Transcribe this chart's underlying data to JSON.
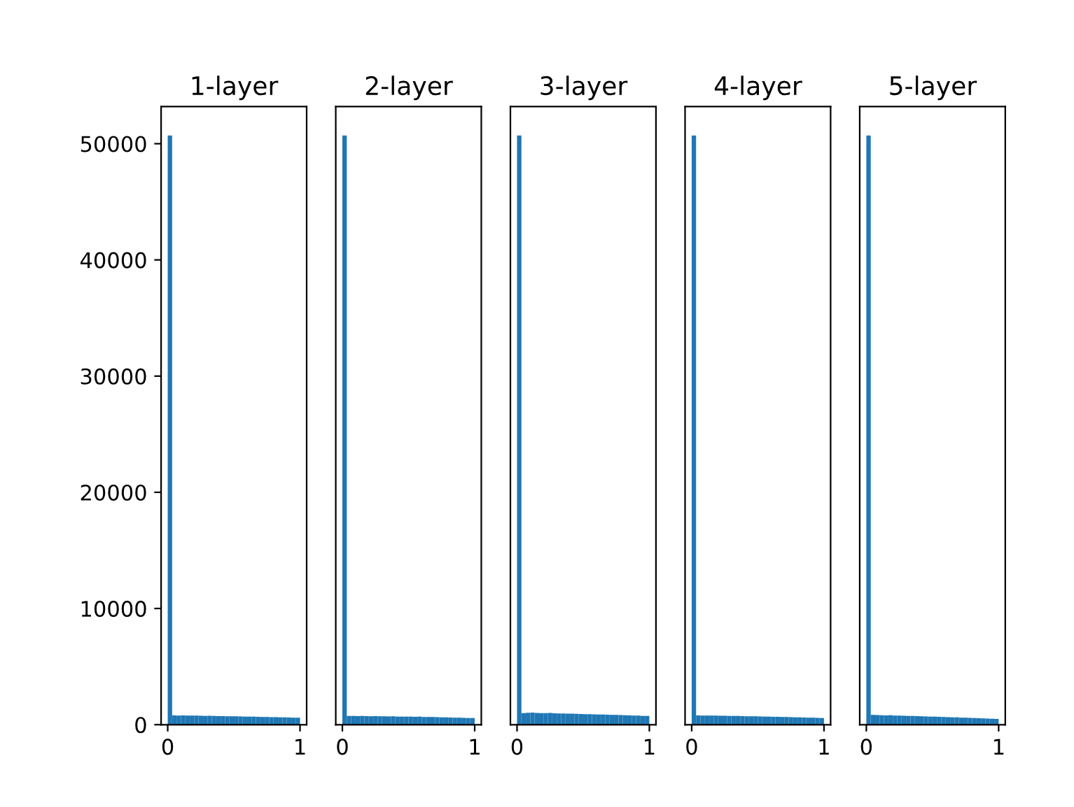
{
  "chart_data": [
    {
      "type": "histogram",
      "title": "1-layer",
      "color": "#1f77b4",
      "bins": [
        0,
        0.0333,
        0.0667,
        0.1,
        0.1333,
        0.1667,
        0.2,
        0.2333,
        0.2667,
        0.3,
        0.3333,
        0.3667,
        0.4,
        0.4333,
        0.4667,
        0.5,
        0.5333,
        0.5667,
        0.6,
        0.6333,
        0.6667,
        0.7,
        0.7333,
        0.7667,
        0.8,
        0.8333,
        0.8667,
        0.9,
        0.9333,
        0.9667,
        1
      ],
      "values": [
        50700,
        800,
        790,
        800,
        780,
        790,
        780,
        770,
        760,
        770,
        750,
        740,
        740,
        730,
        720,
        720,
        710,
        700,
        690,
        690,
        680,
        670,
        660,
        650,
        650,
        640,
        630,
        620,
        610,
        600
      ],
      "xlim": [
        -0.05,
        1.05
      ],
      "xticks": [
        0,
        1
      ],
      "ylim": [
        0,
        53200
      ],
      "yticks": [
        0,
        10000,
        20000,
        30000,
        40000,
        50000
      ],
      "grid": false
    },
    {
      "type": "histogram",
      "title": "2-layer",
      "color": "#1f77b4",
      "bins": [
        0,
        0.0333,
        0.0667,
        0.1,
        0.1333,
        0.1667,
        0.2,
        0.2333,
        0.2667,
        0.3,
        0.3333,
        0.3667,
        0.4,
        0.4333,
        0.4667,
        0.5,
        0.5333,
        0.5667,
        0.6,
        0.6333,
        0.6667,
        0.7,
        0.7333,
        0.7667,
        0.8,
        0.8333,
        0.8667,
        0.9,
        0.9333,
        0.9667,
        1
      ],
      "values": [
        50700,
        750,
        760,
        740,
        750,
        740,
        730,
        740,
        720,
        730,
        710,
        720,
        700,
        700,
        690,
        700,
        680,
        690,
        670,
        660,
        660,
        650,
        640,
        640,
        620,
        610,
        600,
        590,
        580,
        570
      ],
      "xlim": [
        -0.05,
        1.05
      ],
      "xticks": [
        0,
        1
      ],
      "ylim": [
        0,
        53200
      ],
      "yticks": [
        0,
        10000,
        20000,
        30000,
        40000,
        50000
      ],
      "tick_labels": "x",
      "grid": false
    },
    {
      "type": "histogram",
      "title": "3-layer",
      "color": "#1f77b4",
      "bins": [
        0,
        0.0333,
        0.0667,
        0.1,
        0.1333,
        0.1667,
        0.2,
        0.2333,
        0.2667,
        0.3,
        0.3333,
        0.3667,
        0.4,
        0.4333,
        0.4667,
        0.5,
        0.5333,
        0.5667,
        0.6,
        0.6333,
        0.6667,
        0.7,
        0.7333,
        0.7667,
        0.8,
        0.8333,
        0.8667,
        0.9,
        0.9333,
        0.9667,
        1
      ],
      "values": [
        50700,
        1000,
        1020,
        1040,
        1010,
        1000,
        990,
        1010,
        980,
        970,
        960,
        950,
        950,
        930,
        920,
        910,
        900,
        890,
        880,
        870,
        860,
        850,
        840,
        830,
        820,
        800,
        790,
        780,
        760,
        750
      ],
      "xlim": [
        -0.05,
        1.05
      ],
      "xticks": [
        0,
        1
      ],
      "ylim": [
        0,
        53200
      ],
      "yticks": [
        0,
        10000,
        20000,
        30000,
        40000,
        50000
      ],
      "tick_labels": "x",
      "grid": false
    },
    {
      "type": "histogram",
      "title": "4-layer",
      "color": "#1f77b4",
      "bins": [
        0,
        0.0333,
        0.0667,
        0.1,
        0.1333,
        0.1667,
        0.2,
        0.2333,
        0.2667,
        0.3,
        0.3333,
        0.3667,
        0.4,
        0.4333,
        0.4667,
        0.5,
        0.5333,
        0.5667,
        0.6,
        0.6333,
        0.6667,
        0.7,
        0.7333,
        0.7667,
        0.8,
        0.8333,
        0.8667,
        0.9,
        0.9333,
        0.9667,
        1
      ],
      "values": [
        50700,
        800,
        790,
        790,
        780,
        780,
        770,
        770,
        760,
        750,
        750,
        740,
        730,
        730,
        720,
        710,
        700,
        690,
        680,
        680,
        670,
        660,
        650,
        640,
        630,
        620,
        610,
        600,
        590,
        580
      ],
      "xlim": [
        -0.05,
        1.05
      ],
      "xticks": [
        0,
        1
      ],
      "ylim": [
        0,
        53200
      ],
      "yticks": [
        0,
        10000,
        20000,
        30000,
        40000,
        50000
      ],
      "tick_labels": "x",
      "grid": false
    },
    {
      "type": "histogram",
      "title": "5-layer",
      "color": "#1f77b4",
      "bins": [
        0,
        0.0333,
        0.0667,
        0.1,
        0.1333,
        0.1667,
        0.2,
        0.2333,
        0.2667,
        0.3,
        0.3333,
        0.3667,
        0.4,
        0.4333,
        0.4667,
        0.5,
        0.5333,
        0.5667,
        0.6,
        0.6333,
        0.6667,
        0.7,
        0.7333,
        0.7667,
        0.8,
        0.8333,
        0.8667,
        0.9,
        0.9333,
        0.9667,
        1
      ],
      "values": [
        50700,
        850,
        830,
        820,
        800,
        810,
        790,
        780,
        770,
        760,
        750,
        740,
        720,
        710,
        700,
        690,
        680,
        660,
        650,
        640,
        630,
        610,
        600,
        590,
        570,
        560,
        550,
        530,
        520,
        500
      ],
      "xlim": [
        -0.05,
        1.05
      ],
      "xticks": [
        0,
        1
      ],
      "ylim": [
        0,
        53200
      ],
      "yticks": [
        0,
        10000,
        20000,
        30000,
        40000,
        50000
      ],
      "tick_labels": "x",
      "grid": false
    }
  ]
}
